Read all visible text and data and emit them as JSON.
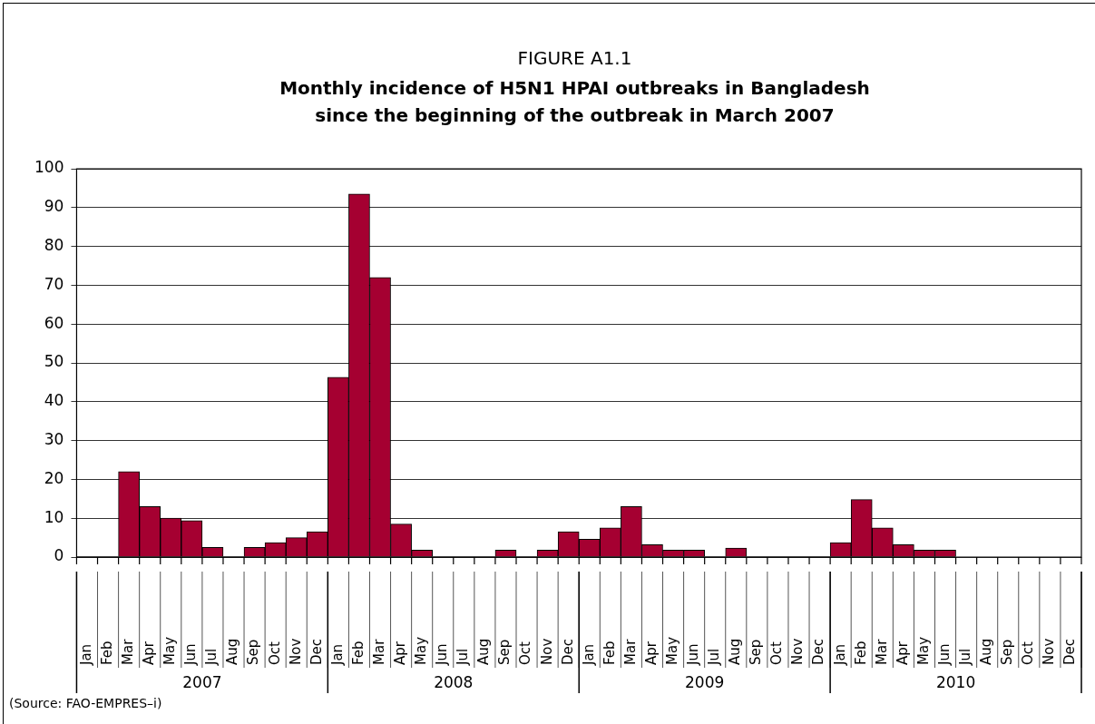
{
  "chart_data": {
    "type": "bar",
    "title": "FIGURE A1.1",
    "subtitle": "Monthly incidence of H5N1 HPAI outbreaks in Bangladesh\nsince the beginning of the outbreak in March 2007",
    "categories": [
      "Jan",
      "Feb",
      "Mar",
      "Apr",
      "May",
      "Jun",
      "Jul",
      "Aug",
      "Sep",
      "Oct",
      "Nov",
      "Dec",
      "Jan",
      "Feb",
      "Mar",
      "Apr",
      "May",
      "Jun",
      "Jul",
      "Aug",
      "Sep",
      "Oct",
      "Nov",
      "Dec",
      "Jan",
      "Feb",
      "Mar",
      "Apr",
      "May",
      "Jun",
      "Jul",
      "Aug",
      "Sep",
      "Oct",
      "Nov",
      "Dec",
      "Jan",
      "Feb",
      "Mar",
      "Apr",
      "May",
      "Jun",
      "Jul",
      "Aug",
      "Sep",
      "Oct",
      "Nov",
      "Dec"
    ],
    "values": [
      0,
      0,
      22,
      13,
      10,
      9.4,
      2.5,
      0,
      2.5,
      3.7,
      5,
      6.5,
      46.3,
      93.5,
      72,
      8.5,
      1.8,
      0,
      0,
      0,
      1.8,
      0,
      1.8,
      6.5,
      4.6,
      7.5,
      13,
      3.2,
      1.8,
      1.8,
      0,
      2.3,
      0,
      0,
      0,
      0,
      3.7,
      14.8,
      7.5,
      3.2,
      1.8,
      1.8,
      null,
      null,
      null,
      null,
      null,
      null
    ],
    "color": "#a50031",
    "ylim": [
      0,
      100
    ],
    "yticks": [
      0,
      10,
      20,
      30,
      40,
      50,
      60,
      70,
      80,
      90,
      100
    ],
    "grid": "y",
    "annotations": [
      "2007",
      "2008",
      "2009",
      "2010",
      "(Source: FAO-EMPRES–i)"
    ]
  }
}
